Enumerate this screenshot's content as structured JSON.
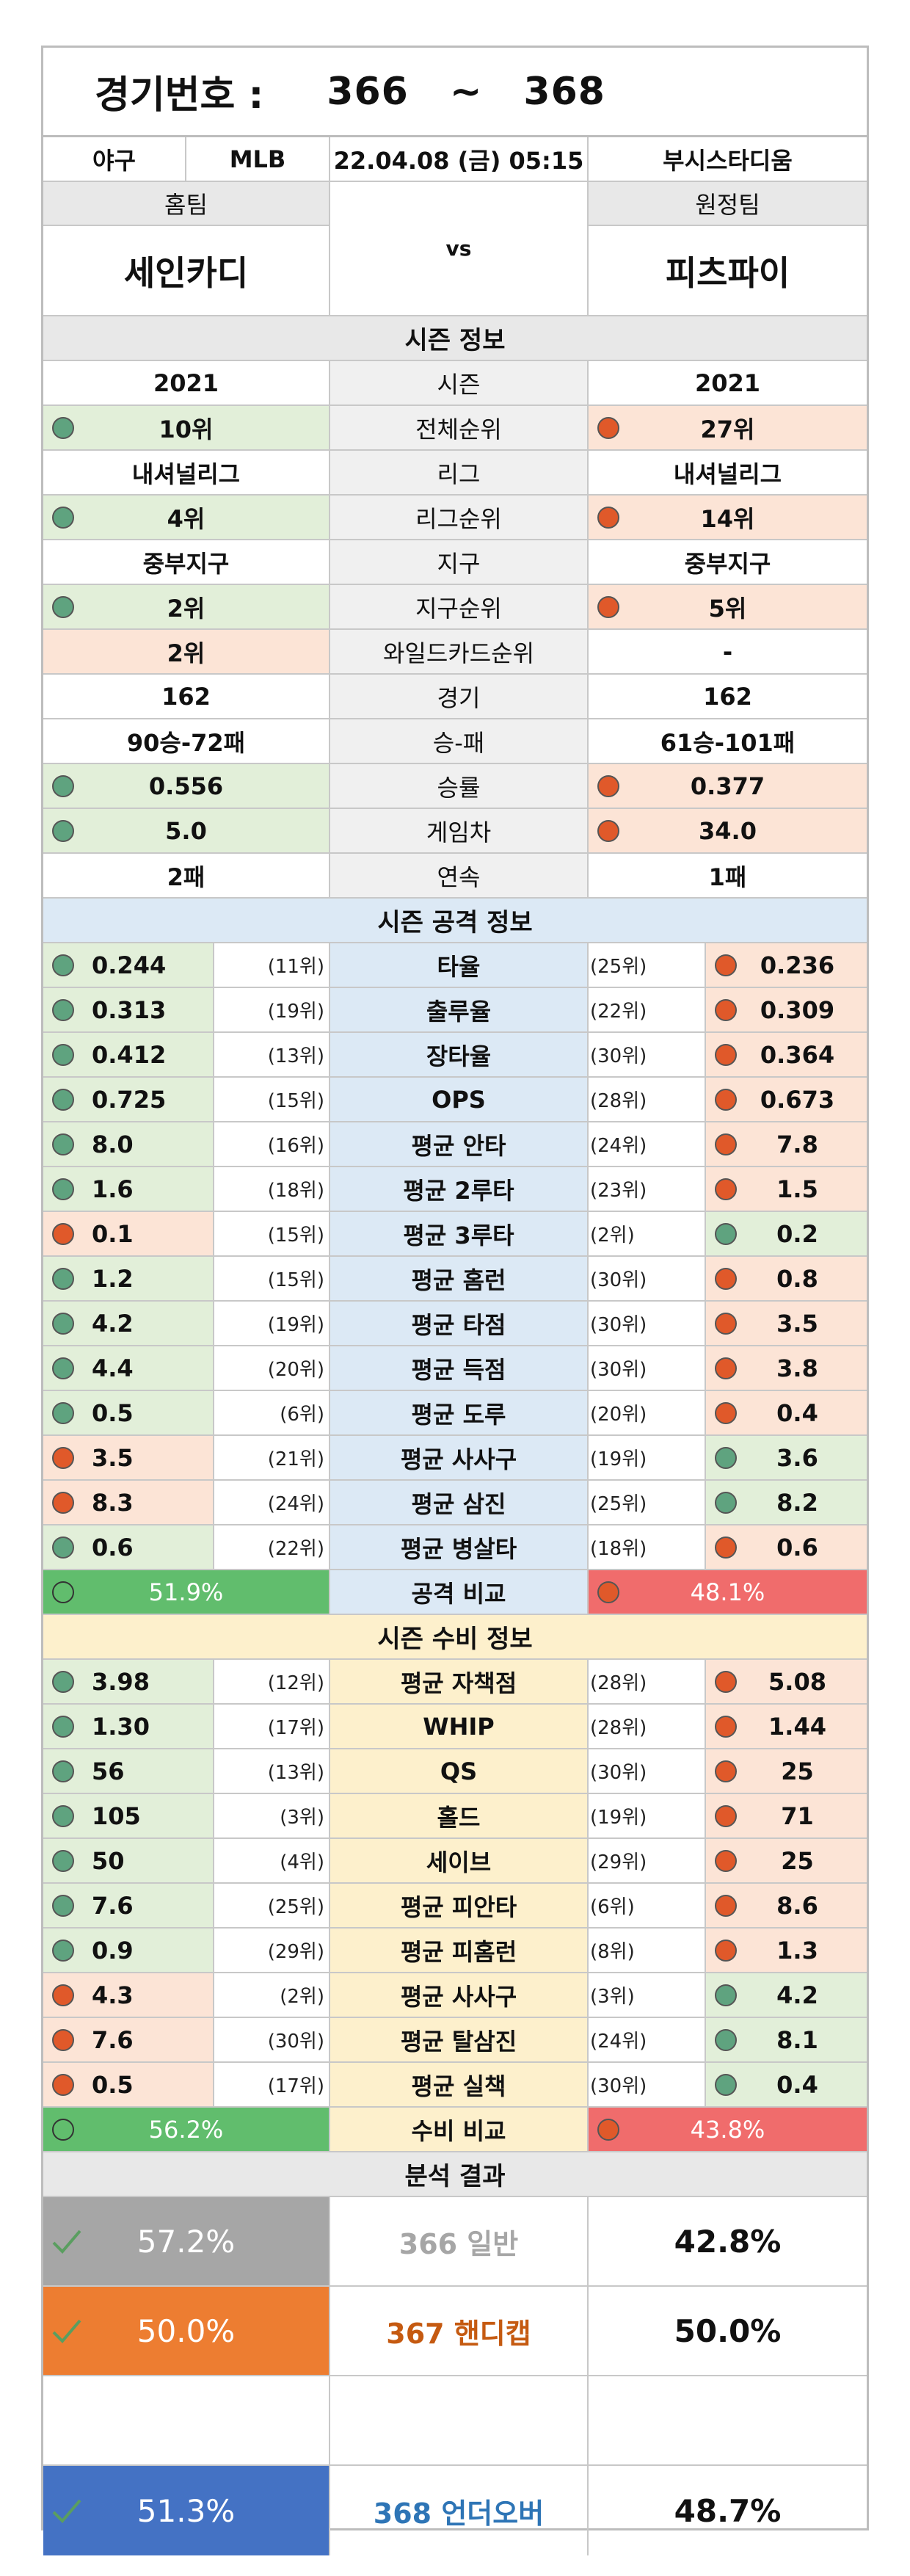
{
  "header": {
    "label": "경기번호 :",
    "from": "366",
    "sep": "~",
    "to": "368"
  },
  "info": {
    "sport": "야구",
    "league": "MLB",
    "datetime": "22.04.08 (금) 05:15",
    "stadium": "부시스타디움"
  },
  "teams": {
    "home_label": "홈팀",
    "away_label": "원정팀",
    "home": "세인카디",
    "away": "피츠파이",
    "vs": "vs"
  },
  "season": {
    "title": "시즌 정보",
    "rows": [
      {
        "label": "시즌",
        "home": "2021",
        "away": "2021",
        "home_bg": "w",
        "away_bg": "w",
        "home_dot": "",
        "away_dot": ""
      },
      {
        "label": "전체순위",
        "home": "10위",
        "away": "27위",
        "home_bg": "g",
        "away_bg": "r",
        "home_dot": "green",
        "away_dot": "red"
      },
      {
        "label": "리그",
        "home": "내셔널리그",
        "away": "내셔널리그",
        "home_bg": "w",
        "away_bg": "w",
        "home_dot": "",
        "away_dot": ""
      },
      {
        "label": "리그순위",
        "home": "4위",
        "away": "14위",
        "home_bg": "g",
        "away_bg": "r",
        "home_dot": "green",
        "away_dot": "red"
      },
      {
        "label": "지구",
        "home": "중부지구",
        "away": "중부지구",
        "home_bg": "w",
        "away_bg": "w",
        "home_dot": "",
        "away_dot": ""
      },
      {
        "label": "지구순위",
        "home": "2위",
        "away": "5위",
        "home_bg": "g",
        "away_bg": "r",
        "home_dot": "green",
        "away_dot": "red"
      },
      {
        "label": "와일드카드순위",
        "home": "2위",
        "away": "-",
        "home_bg": "r",
        "away_bg": "w",
        "home_dot": "",
        "away_dot": ""
      },
      {
        "label": "경기",
        "home": "162",
        "away": "162",
        "home_bg": "w",
        "away_bg": "w",
        "home_dot": "",
        "away_dot": ""
      },
      {
        "label": "승-패",
        "home": "90승-72패",
        "away": "61승-101패",
        "home_bg": "w",
        "away_bg": "w",
        "home_dot": "",
        "away_dot": ""
      },
      {
        "label": "승률",
        "home": "0.556",
        "away": "0.377",
        "home_bg": "g",
        "away_bg": "r",
        "home_dot": "green",
        "away_dot": "red"
      },
      {
        "label": "게임차",
        "home": "5.0",
        "away": "34.0",
        "home_bg": "g",
        "away_bg": "r",
        "home_dot": "green",
        "away_dot": "red"
      },
      {
        "label": "연속",
        "home": "2패",
        "away": "1패",
        "home_bg": "w",
        "away_bg": "w",
        "home_dot": "",
        "away_dot": ""
      }
    ]
  },
  "offense": {
    "title": "시즌 공격 정보",
    "rows": [
      {
        "label": "타율",
        "home": "0.244",
        "home_rank": "(11위)",
        "away_rank": "(25위)",
        "away": "0.236",
        "home_c": "green",
        "away_c": "red"
      },
      {
        "label": "출루율",
        "home": "0.313",
        "home_rank": "(19위)",
        "away_rank": "(22위)",
        "away": "0.309",
        "home_c": "green",
        "away_c": "red"
      },
      {
        "label": "장타율",
        "home": "0.412",
        "home_rank": "(13위)",
        "away_rank": "(30위)",
        "away": "0.364",
        "home_c": "green",
        "away_c": "red"
      },
      {
        "label": "OPS",
        "home": "0.725",
        "home_rank": "(15위)",
        "away_rank": "(28위)",
        "away": "0.673",
        "home_c": "green",
        "away_c": "red"
      },
      {
        "label": "평균 안타",
        "home": "8.0",
        "home_rank": "(16위)",
        "away_rank": "(24위)",
        "away": "7.8",
        "home_c": "green",
        "away_c": "red"
      },
      {
        "label": "평균 2루타",
        "home": "1.6",
        "home_rank": "(18위)",
        "away_rank": "(23위)",
        "away": "1.5",
        "home_c": "green",
        "away_c": "red"
      },
      {
        "label": "평균 3루타",
        "home": "0.1",
        "home_rank": "(15위)",
        "away_rank": "(2위)",
        "away": "0.2",
        "home_c": "red",
        "away_c": "green"
      },
      {
        "label": "평균 홈런",
        "home": "1.2",
        "home_rank": "(15위)",
        "away_rank": "(30위)",
        "away": "0.8",
        "home_c": "green",
        "away_c": "red"
      },
      {
        "label": "평균 타점",
        "home": "4.2",
        "home_rank": "(19위)",
        "away_rank": "(30위)",
        "away": "3.5",
        "home_c": "green",
        "away_c": "red"
      },
      {
        "label": "평균 득점",
        "home": "4.4",
        "home_rank": "(20위)",
        "away_rank": "(30위)",
        "away": "3.8",
        "home_c": "green",
        "away_c": "red"
      },
      {
        "label": "평균 도루",
        "home": "0.5",
        "home_rank": "(6위)",
        "away_rank": "(20위)",
        "away": "0.4",
        "home_c": "green",
        "away_c": "red"
      },
      {
        "label": "평균 사사구",
        "home": "3.5",
        "home_rank": "(21위)",
        "away_rank": "(19위)",
        "away": "3.6",
        "home_c": "red",
        "away_c": "green"
      },
      {
        "label": "평균 삼진",
        "home": "8.3",
        "home_rank": "(24위)",
        "away_rank": "(25위)",
        "away": "8.2",
        "home_c": "red",
        "away_c": "green"
      },
      {
        "label": "평균 병살타",
        "home": "0.6",
        "home_rank": "(22위)",
        "away_rank": "(18위)",
        "away": "0.6",
        "home_c": "green",
        "away_c": "red"
      }
    ],
    "compare": {
      "label": "공격 비교",
      "home": "51.9%",
      "away": "48.1%"
    }
  },
  "defense": {
    "title": "시즌 수비 정보",
    "rows": [
      {
        "label": "평균 자책점",
        "home": "3.98",
        "home_rank": "(12위)",
        "away_rank": "(28위)",
        "away": "5.08",
        "home_c": "green",
        "away_c": "red"
      },
      {
        "label": "WHIP",
        "home": "1.30",
        "home_rank": "(17위)",
        "away_rank": "(28위)",
        "away": "1.44",
        "home_c": "green",
        "away_c": "red"
      },
      {
        "label": "QS",
        "home": "56",
        "home_rank": "(13위)",
        "away_rank": "(30위)",
        "away": "25",
        "home_c": "green",
        "away_c": "red"
      },
      {
        "label": "홀드",
        "home": "105",
        "home_rank": "(3위)",
        "away_rank": "(19위)",
        "away": "71",
        "home_c": "green",
        "away_c": "red"
      },
      {
        "label": "세이브",
        "home": "50",
        "home_rank": "(4위)",
        "away_rank": "(29위)",
        "away": "25",
        "home_c": "green",
        "away_c": "red"
      },
      {
        "label": "평균 피안타",
        "home": "7.6",
        "home_rank": "(25위)",
        "away_rank": "(6위)",
        "away": "8.6",
        "home_c": "green",
        "away_c": "red"
      },
      {
        "label": "평균 피홈런",
        "home": "0.9",
        "home_rank": "(29위)",
        "away_rank": "(8위)",
        "away": "1.3",
        "home_c": "green",
        "away_c": "red"
      },
      {
        "label": "평균 사사구",
        "home": "4.3",
        "home_rank": "(2위)",
        "away_rank": "(3위)",
        "away": "4.2",
        "home_c": "red",
        "away_c": "green"
      },
      {
        "label": "평균 탈삼진",
        "home": "7.6",
        "home_rank": "(30위)",
        "away_rank": "(24위)",
        "away": "8.1",
        "home_c": "red",
        "away_c": "green"
      },
      {
        "label": "평균 실책",
        "home": "0.5",
        "home_rank": "(17위)",
        "away_rank": "(30위)",
        "away": "0.4",
        "home_c": "red",
        "away_c": "green"
      }
    ],
    "compare": {
      "label": "수비 비교",
      "home": "56.2%",
      "away": "43.8%"
    }
  },
  "analysis": {
    "title": "분석 결과",
    "rows": [
      {
        "home_pct": "57.2%",
        "label": "366 일반",
        "away_pct": "42.8%",
        "bg": "#a6a6a6",
        "label_color": "#a6a6a6"
      },
      {
        "home_pct": "50.0%",
        "label": "367 핸디캡",
        "away_pct": "50.0%",
        "bg": "#ed7d31",
        "label_color": "#c55a11"
      },
      {
        "home_pct": "51.3%",
        "label": "368 언더오버",
        "away_pct": "48.7%",
        "bg": "#4472c4",
        "label_color": "#2e75b6"
      }
    ]
  }
}
